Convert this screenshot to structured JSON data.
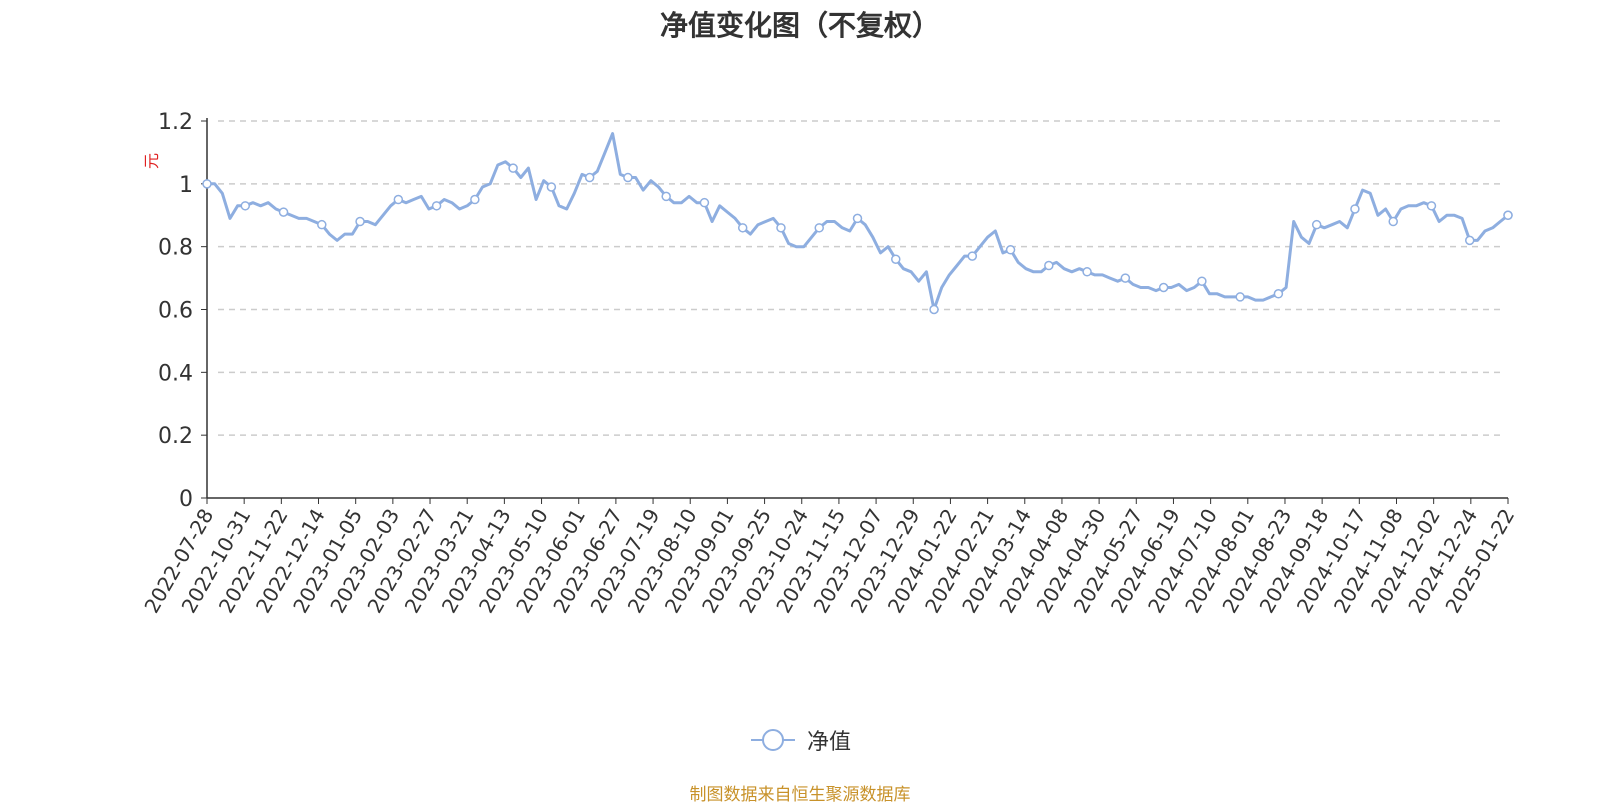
{
  "source_note": "制图数据来自恒生聚源数据库",
  "chart_data": {
    "type": "line",
    "title": "净值变化图（不复权）",
    "ylabel": "元",
    "ylim": [
      0,
      1.2
    ],
    "yticks": [
      "0",
      "0.2",
      "0.4",
      "0.6",
      "0.8",
      "1",
      "1.2"
    ],
    "grid": true,
    "legend_position": "bottom",
    "x_tick_labels": [
      "2022-07-28",
      "2022-10-31",
      "2022-11-22",
      "2022-12-14",
      "2023-01-05",
      "2023-02-03",
      "2023-02-27",
      "2023-03-21",
      "2023-04-13",
      "2023-05-10",
      "2023-06-01",
      "2023-06-27",
      "2023-07-19",
      "2023-08-10",
      "2023-09-01",
      "2023-09-25",
      "2023-10-24",
      "2023-11-15",
      "2023-12-07",
      "2023-12-29",
      "2024-01-22",
      "2024-02-21",
      "2024-03-14",
      "2024-04-08",
      "2024-04-30",
      "2024-05-27",
      "2024-06-19",
      "2024-07-10",
      "2024-08-01",
      "2024-08-23",
      "2024-09-18",
      "2024-10-17",
      "2024-11-08",
      "2024-12-02",
      "2024-12-24",
      "2025-01-22"
    ],
    "series": [
      {
        "name": "净值",
        "color": "#8eaee0",
        "values": [
          1.0,
          1.0,
          0.97,
          0.89,
          0.93,
          0.93,
          0.94,
          0.93,
          0.94,
          0.92,
          0.91,
          0.9,
          0.89,
          0.89,
          0.88,
          0.87,
          0.84,
          0.82,
          0.84,
          0.84,
          0.88,
          0.88,
          0.87,
          0.9,
          0.93,
          0.95,
          0.94,
          0.95,
          0.96,
          0.92,
          0.93,
          0.95,
          0.94,
          0.92,
          0.93,
          0.95,
          0.99,
          1.0,
          1.06,
          1.07,
          1.05,
          1.02,
          1.05,
          0.95,
          1.01,
          0.99,
          0.93,
          0.92,
          0.97,
          1.03,
          1.02,
          1.04,
          1.1,
          1.16,
          1.03,
          1.02,
          1.02,
          0.98,
          1.01,
          0.99,
          0.96,
          0.94,
          0.94,
          0.96,
          0.94,
          0.94,
          0.88,
          0.93,
          0.91,
          0.89,
          0.86,
          0.84,
          0.87,
          0.88,
          0.89,
          0.86,
          0.81,
          0.8,
          0.8,
          0.83,
          0.86,
          0.88,
          0.88,
          0.86,
          0.85,
          0.89,
          0.87,
          0.83,
          0.78,
          0.8,
          0.76,
          0.73,
          0.72,
          0.69,
          0.72,
          0.6,
          0.67,
          0.71,
          0.74,
          0.77,
          0.77,
          0.8,
          0.83,
          0.85,
          0.78,
          0.79,
          0.75,
          0.73,
          0.72,
          0.72,
          0.74,
          0.75,
          0.73,
          0.72,
          0.73,
          0.72,
          0.71,
          0.71,
          0.7,
          0.69,
          0.7,
          0.68,
          0.67,
          0.67,
          0.66,
          0.67,
          0.67,
          0.68,
          0.66,
          0.67,
          0.69,
          0.65,
          0.65,
          0.64,
          0.64,
          0.64,
          0.64,
          0.63,
          0.63,
          0.64,
          0.65,
          0.67,
          0.88,
          0.83,
          0.81,
          0.87,
          0.86,
          0.87,
          0.88,
          0.86,
          0.92,
          0.98,
          0.97,
          0.9,
          0.92,
          0.88,
          0.92,
          0.93,
          0.93,
          0.94,
          0.93,
          0.88,
          0.9,
          0.9,
          0.89,
          0.82,
          0.82,
          0.85,
          0.86,
          0.88,
          0.9
        ]
      }
    ]
  }
}
